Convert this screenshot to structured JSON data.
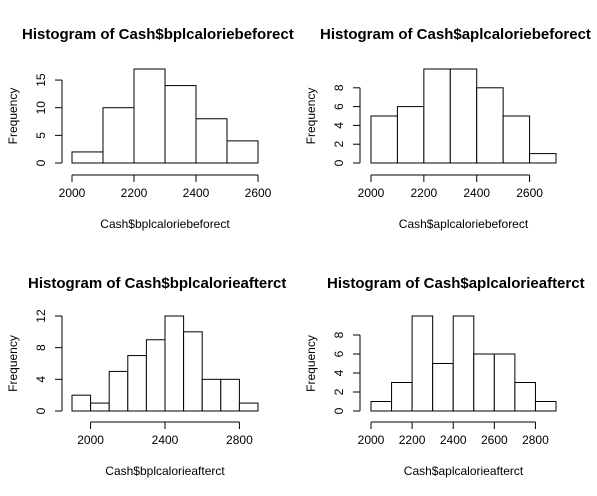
{
  "chart_data": [
    {
      "type": "bar",
      "title": "Histogram of Cash$bplcaloriebeforect",
      "xlabel": "Cash$bplcaloriebeforect",
      "ylabel": "Frequency",
      "bin_edges": [
        2000,
        2100,
        2200,
        2300,
        2400,
        2500,
        2600
      ],
      "values": [
        2,
        10,
        17,
        14,
        8,
        4
      ],
      "xticks": [
        2000,
        2200,
        2400,
        2600
      ],
      "yticks": [
        0,
        5,
        10,
        15
      ],
      "xlim": [
        2000,
        2600
      ],
      "ylim": [
        0,
        17
      ]
    },
    {
      "type": "bar",
      "title": "Histogram of Cash$aplcaloriebeforect",
      "xlabel": "Cash$aplcaloriebeforect",
      "ylabel": "Frequency",
      "bin_edges": [
        2000,
        2100,
        2200,
        2300,
        2400,
        2500,
        2600,
        2700
      ],
      "values": [
        5,
        6,
        10,
        10,
        8,
        5,
        1
      ],
      "xticks": [
        2000,
        2200,
        2400,
        2600
      ],
      "yticks": [
        0,
        2,
        4,
        6,
        8
      ],
      "xlim": [
        2000,
        2700
      ],
      "ylim": [
        0,
        10
      ]
    },
    {
      "type": "bar",
      "title": "Histogram of Cash$bplcalorieafterct",
      "xlabel": "Cash$bplcalorieafterct",
      "ylabel": "Frequency",
      "bin_edges": [
        1900,
        2000,
        2100,
        2200,
        2300,
        2400,
        2500,
        2600,
        2700,
        2800,
        2900
      ],
      "values": [
        2,
        1,
        5,
        7,
        9,
        12,
        10,
        4,
        4,
        1
      ],
      "xticks": [
        2000,
        2400,
        2800
      ],
      "yticks": [
        0,
        4,
        8,
        12
      ],
      "xlim": [
        1900,
        2900
      ],
      "ylim": [
        0,
        12
      ]
    },
    {
      "type": "bar",
      "title": "Histogram of Cash$aplcalorieafterct",
      "xlabel": "Cash$aplcalorieafterct",
      "ylabel": "Frequency",
      "bin_edges": [
        2000,
        2100,
        2200,
        2300,
        2400,
        2500,
        2600,
        2700,
        2800,
        2900
      ],
      "values": [
        1,
        3,
        10,
        5,
        10,
        6,
        6,
        3,
        1
      ],
      "xticks": [
        2000,
        2200,
        2400,
        2600,
        2800
      ],
      "yticks": [
        0,
        2,
        4,
        6,
        8
      ],
      "xlim": [
        2000,
        2900
      ],
      "ylim": [
        0,
        10
      ]
    }
  ]
}
